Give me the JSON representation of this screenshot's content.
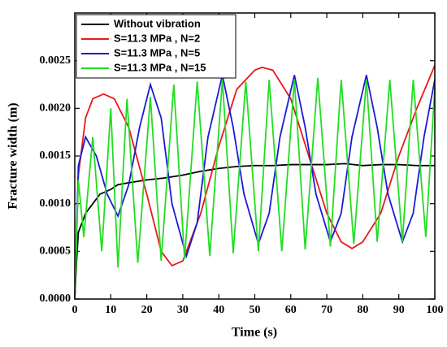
{
  "chart_data": {
    "type": "line",
    "xlabel": "Time (s)",
    "ylabel": "Fracture width (m)",
    "xlim": [
      0,
      100
    ],
    "xticks": [
      0,
      10,
      20,
      30,
      40,
      50,
      60,
      70,
      80,
      90,
      100
    ],
    "ylim": [
      0,
      0.003
    ],
    "yticks": [
      {
        "value": 0,
        "label": "0.0000"
      },
      {
        "value": 0.0005,
        "label": "0.0005"
      },
      {
        "value": 0.001,
        "label": "0.0010"
      },
      {
        "value": 0.0015,
        "label": "0.0015"
      },
      {
        "value": 0.002,
        "label": "0.0020"
      },
      {
        "value": 0.0025,
        "label": "0.0025"
      }
    ],
    "legend": "upper left",
    "series": [
      {
        "name": "Without vibration",
        "color": "#000000",
        "x": [
          0,
          0.5,
          1,
          2,
          3,
          5,
          7,
          10,
          12,
          15,
          20,
          25,
          30,
          35,
          40,
          45,
          50,
          55,
          60,
          65,
          70,
          75,
          80,
          85,
          90,
          95,
          100
        ],
        "values": [
          0,
          0.0004,
          0.0007,
          0.0008,
          0.0009,
          0.001,
          0.0011,
          0.00115,
          0.0012,
          0.00122,
          0.00125,
          0.00127,
          0.0013,
          0.00134,
          0.00137,
          0.00139,
          0.0014,
          0.0014,
          0.00141,
          0.00141,
          0.00141,
          0.00142,
          0.0014,
          0.00141,
          0.00141,
          0.0014,
          0.0014
        ]
      },
      {
        "name": "S=11.3 MPa , N=2",
        "color": "#e8191a",
        "x": [
          0,
          1,
          3,
          5,
          8,
          11,
          15,
          20,
          24,
          27,
          30,
          35,
          40,
          45,
          50,
          52,
          55,
          60,
          65,
          70,
          74,
          77,
          80,
          85,
          90,
          95,
          100
        ],
        "values": [
          0,
          0.0013,
          0.0019,
          0.0021,
          0.00215,
          0.0021,
          0.0018,
          0.0011,
          0.0005,
          0.00035,
          0.0004,
          0.0009,
          0.0016,
          0.0022,
          0.0024,
          0.00243,
          0.0024,
          0.0021,
          0.0015,
          0.0009,
          0.0006,
          0.00053,
          0.0006,
          0.0009,
          0.0015,
          0.002,
          0.00245
        ]
      },
      {
        "name": "S=11.3 MPa , N=5",
        "color": "#1a1ad6",
        "x": [
          0,
          1,
          3,
          6,
          9,
          12,
          15,
          18,
          21,
          24,
          27,
          31,
          34,
          37,
          41,
          44,
          47,
          51,
          54,
          57,
          61,
          64,
          67,
          71,
          74,
          77,
          81,
          84,
          87,
          91,
          94,
          97,
          100
        ],
        "values": [
          0,
          0.0014,
          0.0017,
          0.0015,
          0.0011,
          0.00087,
          0.0012,
          0.0018,
          0.00225,
          0.0019,
          0.001,
          0.00045,
          0.0008,
          0.0017,
          0.00235,
          0.0018,
          0.0011,
          0.00058,
          0.0009,
          0.0017,
          0.00235,
          0.0018,
          0.0011,
          0.0006,
          0.0009,
          0.0017,
          0.00235,
          0.0018,
          0.0011,
          0.0006,
          0.0009,
          0.0017,
          0.0023
        ]
      },
      {
        "name": "S=11.3 MPa , N=15",
        "color": "#22dd22",
        "x": [
          0,
          1,
          2.5,
          5,
          7.5,
          10,
          12,
          14.5,
          17.5,
          21,
          24,
          27.5,
          30.5,
          34,
          37.5,
          41,
          44,
          47.5,
          51,
          54,
          57.5,
          61,
          64,
          67.5,
          71,
          74,
          77.5,
          81,
          84,
          87.5,
          91,
          94,
          97.5,
          100
        ],
        "values": [
          0,
          0.00125,
          0.00065,
          0.0017,
          0.0005,
          0.002,
          0.00033,
          0.0021,
          0.00038,
          0.00212,
          0.0004,
          0.00225,
          0.00042,
          0.00228,
          0.00045,
          0.0023,
          0.00048,
          0.00228,
          0.0005,
          0.0023,
          0.0005,
          0.0023,
          0.00052,
          0.00232,
          0.00055,
          0.0023,
          0.00058,
          0.0023,
          0.0006,
          0.0023,
          0.0006,
          0.0023,
          0.00065,
          0.00222
        ]
      }
    ]
  }
}
